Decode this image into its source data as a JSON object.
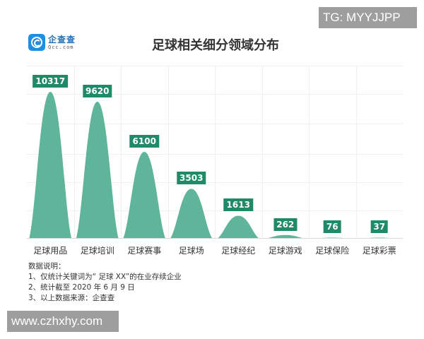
{
  "header": {
    "logo_cn": "企查查",
    "logo_en": "Qcc.com",
    "title": "足球相关细分领域分布"
  },
  "watermarks": {
    "top_right": "TG: MYYJJPP",
    "bottom_left": "www.czhxhy.com"
  },
  "colors": {
    "bar_fill": "#5fb59a",
    "label_bg": "#1e8a68",
    "logo_blue": "#1f8ee0"
  },
  "notes": {
    "heading": "数据说明：",
    "items": [
      "1、仅统计关键词为“ 足球 XX”的在业存续企业",
      "2、统计截至 2020 年 6 月 9 日",
      "3、以上数据来源：企查查"
    ]
  },
  "chart_data": {
    "type": "bar",
    "title": "足球相关细分领域分布",
    "xlabel": "",
    "ylabel": "",
    "categories": [
      "足球用品",
      "足球培训",
      "足球赛事",
      "足球场",
      "足球经纪",
      "足球游戏",
      "足球保险",
      "足球彩票"
    ],
    "values": [
      10317,
      9620,
      6100,
      3503,
      1613,
      262,
      76,
      37
    ],
    "value_labels": [
      "10317",
      "9620",
      "6100",
      "3503",
      "1613",
      "262",
      "76",
      "37"
    ],
    "ylim": [
      0,
      12000
    ],
    "grid": true,
    "legend": null,
    "bar_style": "bell-shaped peaks with value labels above"
  }
}
